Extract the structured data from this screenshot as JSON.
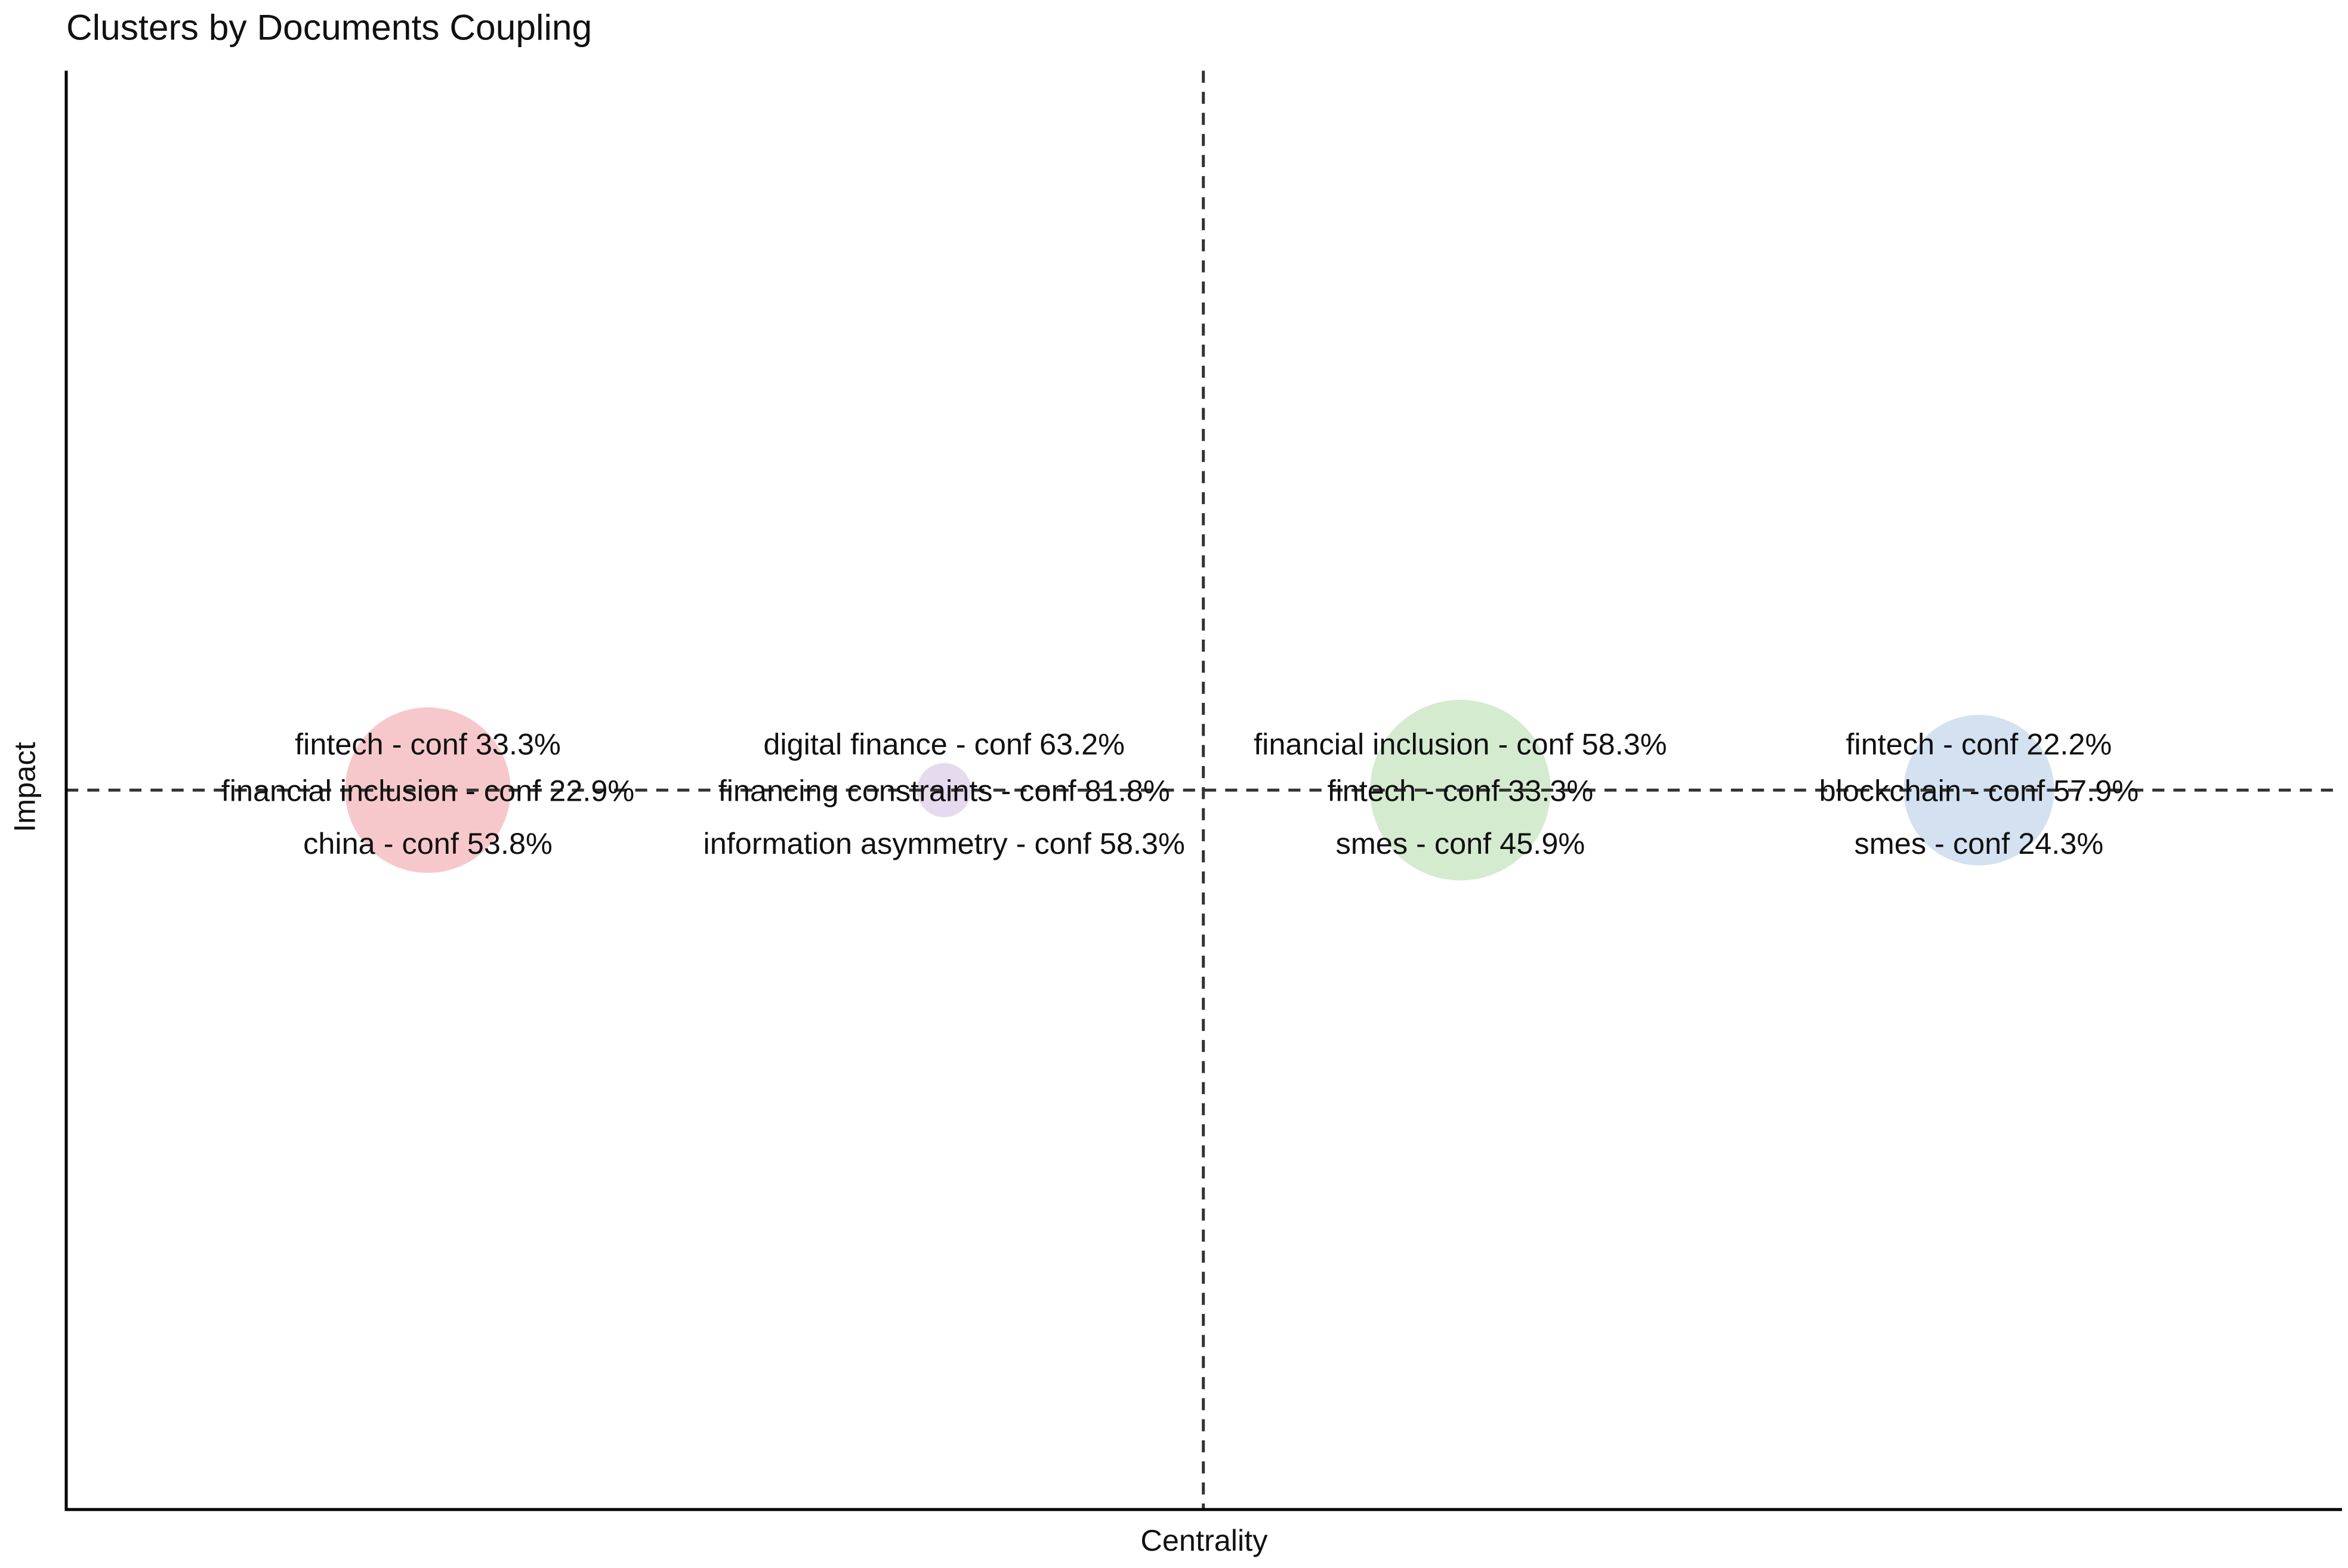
{
  "chart_data": {
    "type": "bubble",
    "title": "Clusters by Documents Coupling",
    "x_label": "Centrality",
    "y_label": "Impact",
    "xlim": [
      0,
      100
    ],
    "ylim": [
      0,
      100
    ],
    "ref_lines": {
      "x": 50,
      "y": 50
    },
    "clusters": [
      {
        "x": 15.9,
        "y": 50,
        "size": 55,
        "color": "#f2a3a8",
        "labels": [
          "fintech - conf 33.3%",
          "financial inclusion - conf 22.9%",
          "china - conf 53.8%"
        ]
      },
      {
        "x": 38.6,
        "y": 50,
        "size": 18,
        "color": "#d5c2e3",
        "labels": [
          "digital finance - conf 63.2%",
          "financing constraints - conf 81.8%",
          "information asymmetry - conf 58.3%"
        ]
      },
      {
        "x": 61.3,
        "y": 50,
        "size": 60,
        "color": "#b7deb0",
        "labels": [
          "financial inclusion - conf 58.3%",
          "fintech - conf 33.3%",
          "smes - conf 45.9%"
        ]
      },
      {
        "x": 84.1,
        "y": 50,
        "size": 50,
        "color": "#b5cde8",
        "labels": [
          "fintech - conf 22.2%",
          "blockchain - conf 57.9%",
          "smes - conf 24.3%"
        ]
      }
    ]
  }
}
